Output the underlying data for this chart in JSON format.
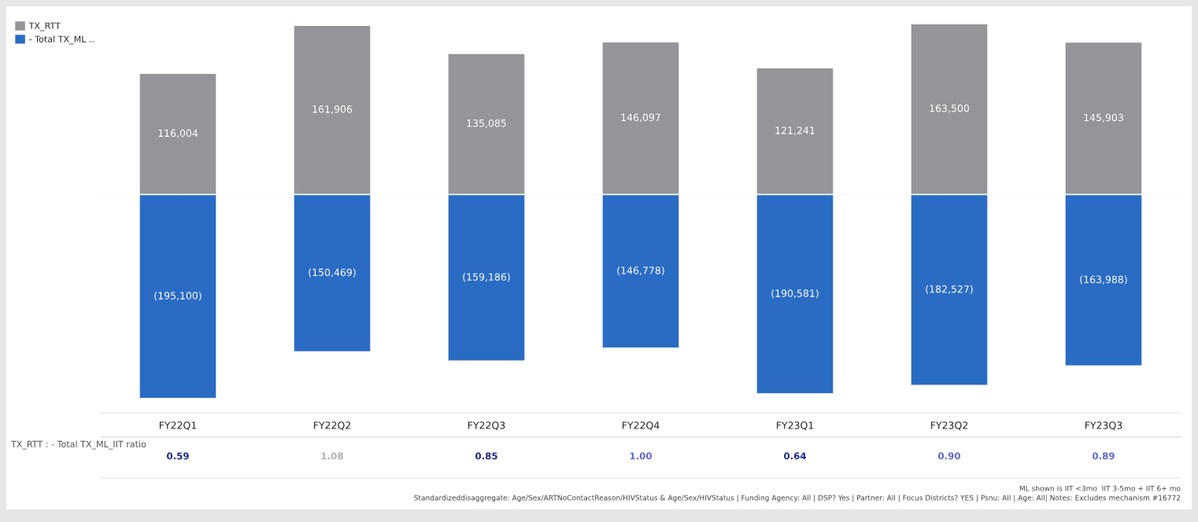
{
  "chart_data": {
    "type": "bar",
    "stacked": true,
    "legend": "top left",
    "grid": false,
    "ref_lines": [
      {
        "axis": "y",
        "value": 0,
        "color": "#eeeeee",
        "line_style": "dotted"
      }
    ],
    "categories": [
      "FY22Q1",
      "FY22Q2",
      "FY22Q3",
      "FY22Q4",
      "FY23Q1",
      "FY23Q2",
      "FY23Q3"
    ],
    "series": [
      {
        "name": "TX_RTT",
        "color": "#939598",
        "values": [
          116004,
          161906,
          135085,
          146097,
          121241,
          163500,
          145903
        ],
        "value_labels": [
          "116,004",
          "161,906",
          "135,085",
          "146,097",
          "121,241",
          "163,500",
          "145,903"
        ]
      },
      {
        "name": "- Total TX_ML ..",
        "color": "#2a6cc4",
        "values": [
          -195100,
          -150469,
          -159186,
          -146778,
          -190581,
          -182527,
          -163988
        ],
        "value_labels": [
          "(195,100)",
          "(150,469)",
          "(159,186)",
          "(146,778)",
          "(190,581)",
          "(182,527)",
          "(163,988)"
        ]
      }
    ],
    "annotations": [
      "TX_RTT : - Total TX_ML_IIT ratio",
      "0.59",
      "1.08",
      "0.85",
      "1.00",
      "0.64",
      "0.90",
      "0.89",
      "ML shown is IIT <3mo  IIT 3-5mo + IIT 6+ mo",
      "Standardizeddisaggregate: Age/Sex/ARTNoContactReason/HIVStatus & Age/Sex/HIVStatus | Funding Agency: All | DSP? Yes | Partner: All | Focus Districts? YES | Psnu: All | Age: All| Notes: Excludes mechanism #16772"
    ]
  }
}
